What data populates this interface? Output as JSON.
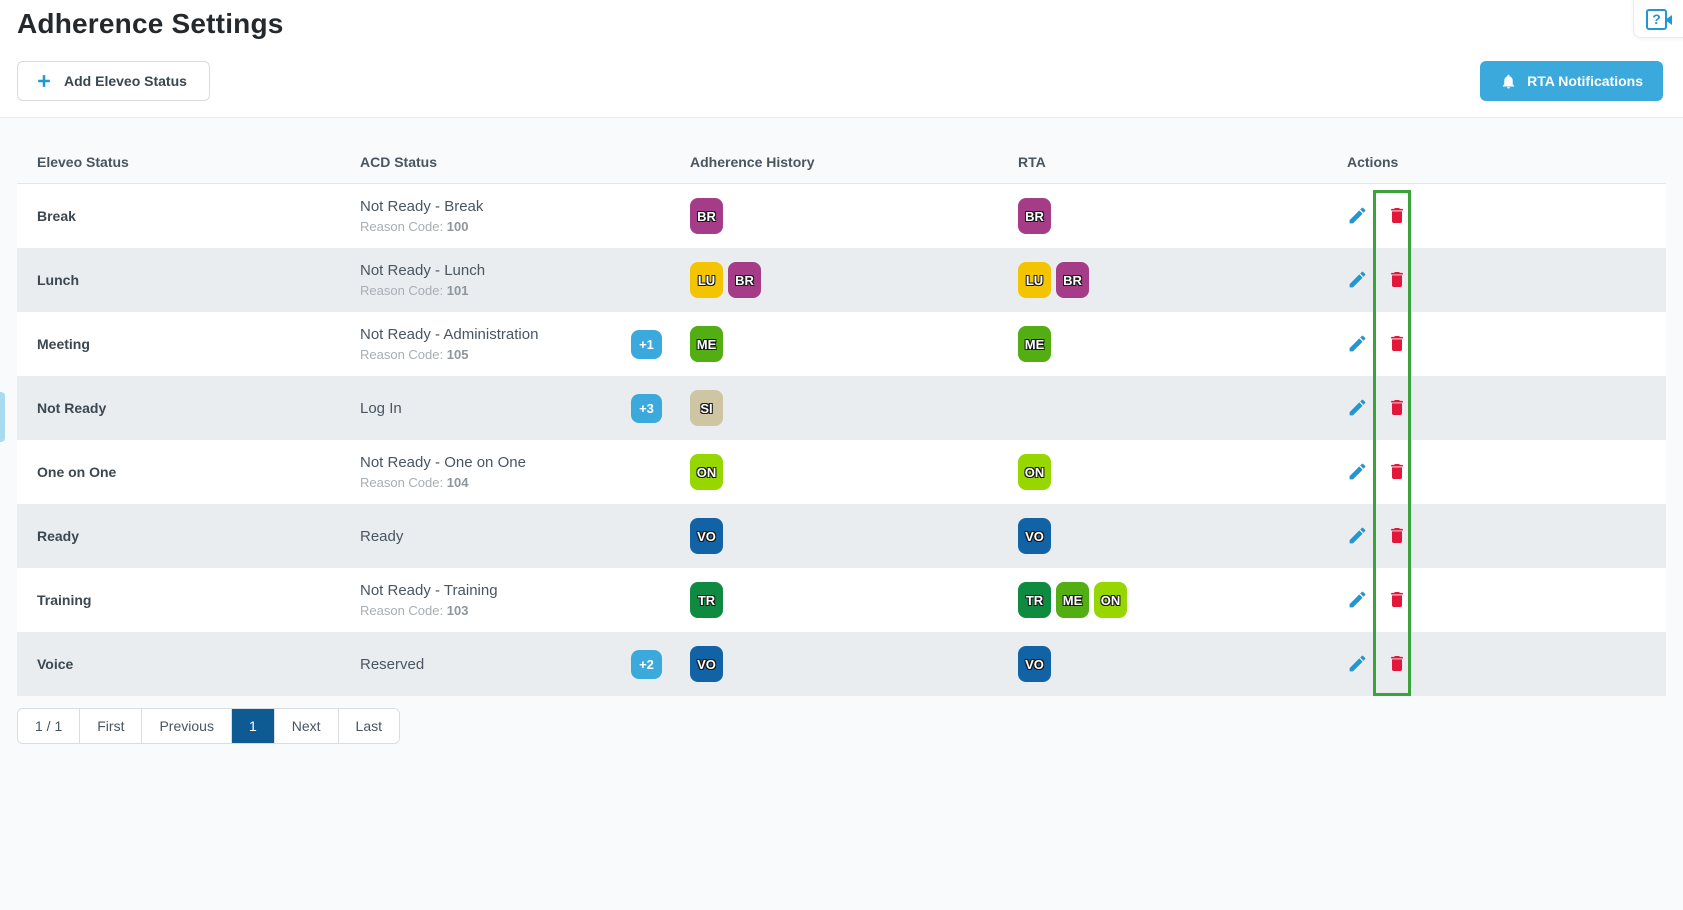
{
  "page": {
    "title": "Adherence Settings"
  },
  "toolbar": {
    "add_label": "Add Eleveo Status",
    "rta_label": "RTA Notifications"
  },
  "help": {
    "icon": "help-question-box",
    "glyph": "?"
  },
  "table": {
    "headers": [
      "Eleveo Status",
      "ACD Status",
      "Adherence History",
      "RTA",
      "Actions"
    ],
    "reason_label": "Reason Code:",
    "badge_colors": {
      "BR": "#a53c88",
      "LU": "#f5c400",
      "ME": "#52ae13",
      "SI": "#cec5a2",
      "ON": "#97d700",
      "VO": "#1263a5",
      "TR": "#0f8a41"
    },
    "rows": [
      {
        "eleveo": "Break",
        "acd": "Not Ready - Break",
        "reason": "100",
        "extra": null,
        "history": [
          "BR"
        ],
        "rta": [
          "BR"
        ]
      },
      {
        "eleveo": "Lunch",
        "acd": "Not Ready - Lunch",
        "reason": "101",
        "extra": null,
        "history": [
          "LU",
          "BR"
        ],
        "rta": [
          "LU",
          "BR"
        ]
      },
      {
        "eleveo": "Meeting",
        "acd": "Not Ready - Administration",
        "reason": "105",
        "extra": "+1",
        "history": [
          "ME"
        ],
        "rta": [
          "ME"
        ]
      },
      {
        "eleveo": "Not Ready",
        "acd": "Log In",
        "reason": null,
        "extra": "+3",
        "history": [
          "SI"
        ],
        "rta": []
      },
      {
        "eleveo": "One on One",
        "acd": "Not Ready - One on One",
        "reason": "104",
        "extra": null,
        "history": [
          "ON"
        ],
        "rta": [
          "ON"
        ]
      },
      {
        "eleveo": "Ready",
        "acd": "Ready",
        "reason": null,
        "extra": null,
        "history": [
          "VO"
        ],
        "rta": [
          "VO"
        ]
      },
      {
        "eleveo": "Training",
        "acd": "Not Ready - Training",
        "reason": "103",
        "extra": null,
        "history": [
          "TR"
        ],
        "rta": [
          "TR",
          "ME",
          "ON"
        ]
      },
      {
        "eleveo": "Voice",
        "acd": "Reserved",
        "reason": null,
        "extra": "+2",
        "history": [
          "VO"
        ],
        "rta": [
          "VO"
        ]
      }
    ]
  },
  "pagination": {
    "summary": "1 / 1",
    "first": "First",
    "previous": "Previous",
    "page": "1",
    "next": "Next",
    "last": "Last"
  },
  "annotation": {
    "type": "highlight-rectangle",
    "color": "#3ca23c",
    "target": "delete-buttons-column"
  },
  "colors": {
    "accent_blue": "#3ba9dc",
    "icon_blue": "#2196d3",
    "delete_red": "#e3173c",
    "active_page_blue": "#0e5a93",
    "row_alt": "#e9edf0"
  }
}
